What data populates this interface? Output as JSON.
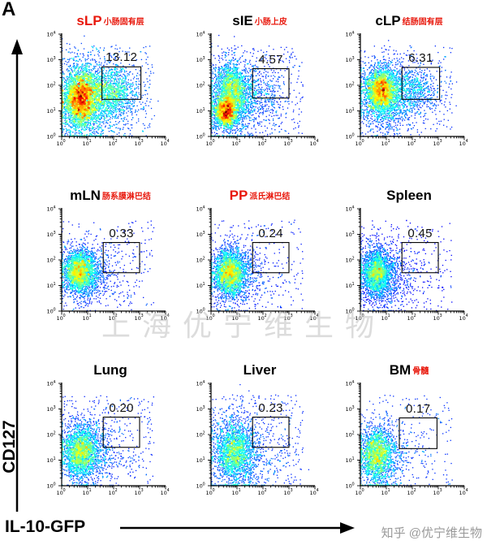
{
  "figure": {
    "panel_label": "A",
    "y_axis_label": "CD127",
    "x_axis_label": "IL-10-GFP",
    "watermark": "上海优宁维生物",
    "credit": "知乎 @优宁维生物"
  },
  "axes": {
    "scale": "log10",
    "decades": [
      "0",
      "1",
      "2",
      "3",
      "4"
    ],
    "x_range": [
      "10^0",
      "10^4"
    ],
    "y_range": [
      "10^0",
      "10^4"
    ]
  },
  "chart_data": {
    "type": "scatter",
    "subtype": "flow-cytometry-pseudocolor-density-grid",
    "x_axis": "IL-10-GFP",
    "y_axis": "CD127",
    "grid": "3x3",
    "panels": [
      {
        "label": "sLP",
        "label_color": "#e8180c",
        "annotation": "小肠固有层",
        "gate_value": "13.12",
        "gate": {
          "x0": 1.55,
          "x1": 3.05,
          "y0": 1.45,
          "y1": 2.72
        },
        "peak": 1.0,
        "seed": 11,
        "noise": 320,
        "clusters": [
          {
            "cx": 0.72,
            "cy": 1.5,
            "sx": 0.3,
            "sy": 0.55,
            "n": 2600
          },
          {
            "cx": 0.95,
            "cy": 1.45,
            "sx": 0.6,
            "sy": 0.75,
            "n": 1400
          },
          {
            "cx": 1.95,
            "cy": 1.75,
            "sx": 0.5,
            "sy": 0.5,
            "n": 1000
          },
          {
            "cx": 1.5,
            "cy": 1.2,
            "sx": 0.8,
            "sy": 0.6,
            "n": 400
          }
        ]
      },
      {
        "label": "sIE",
        "label_color": "#000000",
        "annotation": "小肠上皮",
        "gate_value": "4.57",
        "gate": {
          "x0": 1.6,
          "x1": 3.0,
          "y0": 1.5,
          "y1": 2.65
        },
        "peak": 1.0,
        "seed": 22,
        "noise": 300,
        "clusters": [
          {
            "cx": 0.55,
            "cy": 0.95,
            "sx": 0.22,
            "sy": 0.28,
            "n": 1700
          },
          {
            "cx": 0.8,
            "cy": 1.75,
            "sx": 0.32,
            "sy": 0.55,
            "n": 1700
          },
          {
            "cx": 0.85,
            "cy": 1.35,
            "sx": 0.55,
            "sy": 0.85,
            "n": 1100
          },
          {
            "cx": 1.85,
            "cy": 1.7,
            "sx": 0.5,
            "sy": 0.55,
            "n": 380
          }
        ]
      },
      {
        "label": "cLP",
        "label_color": "#000000",
        "annotation": "结肠固有层",
        "gate_value": "6.31",
        "gate": {
          "x0": 1.6,
          "x1": 3.05,
          "y0": 1.45,
          "y1": 2.7
        },
        "peak": 0.97,
        "seed": 33,
        "noise": 280,
        "clusters": [
          {
            "cx": 0.8,
            "cy": 1.8,
            "sx": 0.3,
            "sy": 0.42,
            "n": 2300
          },
          {
            "cx": 0.95,
            "cy": 1.5,
            "sx": 0.55,
            "sy": 0.7,
            "n": 1200
          },
          {
            "cx": 2.05,
            "cy": 1.8,
            "sx": 0.48,
            "sy": 0.48,
            "n": 650
          }
        ]
      },
      {
        "label": "mLN",
        "label_color": "#000000",
        "annotation": "肠系膜淋巴结",
        "gate_value": "0.33",
        "gate": {
          "x0": 1.6,
          "x1": 3.0,
          "y0": 1.5,
          "y1": 2.68
        },
        "peak": 0.74,
        "seed": 44,
        "noise": 230,
        "clusters": [
          {
            "cx": 0.68,
            "cy": 1.55,
            "sx": 0.3,
            "sy": 0.38,
            "n": 1900
          },
          {
            "cx": 0.8,
            "cy": 1.45,
            "sx": 0.5,
            "sy": 0.6,
            "n": 800
          },
          {
            "cx": 1.5,
            "cy": 1.4,
            "sx": 0.7,
            "sy": 0.55,
            "n": 140
          }
        ]
      },
      {
        "label": "PP",
        "label_color": "#e8180c",
        "annotation": "派氏淋巴结",
        "gate_value": "0.24",
        "gate": {
          "x0": 1.6,
          "x1": 3.0,
          "y0": 1.5,
          "y1": 2.68
        },
        "peak": 0.72,
        "seed": 55,
        "noise": 220,
        "clusters": [
          {
            "cx": 0.7,
            "cy": 1.5,
            "sx": 0.3,
            "sy": 0.42,
            "n": 2000
          },
          {
            "cx": 0.85,
            "cy": 1.4,
            "sx": 0.5,
            "sy": 0.62,
            "n": 800
          },
          {
            "cx": 1.5,
            "cy": 1.35,
            "sx": 0.7,
            "sy": 0.55,
            "n": 120
          }
        ]
      },
      {
        "label": "Spleen",
        "label_color": "#000000",
        "annotation": "",
        "gate_value": "0.45",
        "gate": {
          "x0": 1.6,
          "x1": 3.0,
          "y0": 1.5,
          "y1": 2.68
        },
        "peak": 0.74,
        "seed": 66,
        "noise": 260,
        "clusters": [
          {
            "cx": 0.62,
            "cy": 1.5,
            "sx": 0.28,
            "sy": 0.42,
            "n": 1800
          },
          {
            "cx": 0.78,
            "cy": 1.38,
            "sx": 0.5,
            "sy": 0.68,
            "n": 850
          },
          {
            "cx": 1.55,
            "cy": 1.35,
            "sx": 0.7,
            "sy": 0.6,
            "n": 170
          }
        ]
      },
      {
        "label": "Lung",
        "label_color": "#000000",
        "annotation": "",
        "gate_value": "0.20",
        "gate": {
          "x0": 1.6,
          "x1": 3.0,
          "y0": 1.5,
          "y1": 2.68
        },
        "peak": 0.68,
        "seed": 77,
        "noise": 280,
        "clusters": [
          {
            "cx": 0.72,
            "cy": 1.35,
            "sx": 0.32,
            "sy": 0.5,
            "n": 1600
          },
          {
            "cx": 0.85,
            "cy": 1.3,
            "sx": 0.55,
            "sy": 0.75,
            "n": 950
          },
          {
            "cx": 1.6,
            "cy": 1.3,
            "sx": 0.7,
            "sy": 0.6,
            "n": 170
          }
        ]
      },
      {
        "label": "Liver",
        "label_color": "#000000",
        "annotation": "",
        "gate_value": "0.23",
        "gate": {
          "x0": 1.6,
          "x1": 3.0,
          "y0": 1.5,
          "y1": 2.68
        },
        "peak": 0.64,
        "seed": 88,
        "noise": 320,
        "clusters": [
          {
            "cx": 0.88,
            "cy": 1.3,
            "sx": 0.34,
            "sy": 0.55,
            "n": 1300
          },
          {
            "cx": 1.0,
            "cy": 1.3,
            "sx": 0.55,
            "sy": 0.85,
            "n": 900
          },
          {
            "cx": 1.7,
            "cy": 1.35,
            "sx": 0.7,
            "sy": 0.6,
            "n": 200
          }
        ]
      },
      {
        "label": "BM",
        "label_color": "#000000",
        "annotation": "骨髓",
        "gate_value": "0.17",
        "gate": {
          "x0": 1.5,
          "x1": 2.95,
          "y0": 1.45,
          "y1": 2.65
        },
        "peak": 0.66,
        "seed": 99,
        "noise": 200,
        "clusters": [
          {
            "cx": 0.62,
            "cy": 1.2,
            "sx": 0.3,
            "sy": 0.5,
            "n": 1400
          },
          {
            "cx": 0.75,
            "cy": 1.15,
            "sx": 0.48,
            "sy": 0.7,
            "n": 750
          },
          {
            "cx": 1.45,
            "cy": 1.2,
            "sx": 0.65,
            "sy": 0.55,
            "n": 110
          }
        ]
      }
    ]
  }
}
